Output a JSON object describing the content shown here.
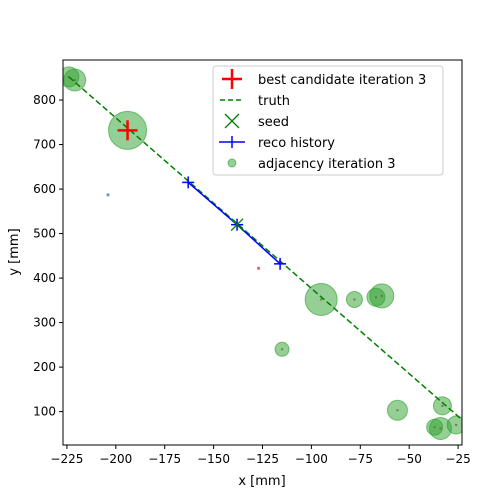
{
  "chart_data": {
    "type": "scatter",
    "xlabel": "x [mm]",
    "ylabel": "y [mm]",
    "xlim": [
      -227,
      -23
    ],
    "ylim": [
      25,
      890
    ],
    "x_ticks": [
      -225,
      -200,
      -175,
      -150,
      -125,
      -100,
      -75,
      -50,
      -25
    ],
    "y_ticks": [
      100,
      200,
      300,
      400,
      500,
      600,
      700,
      800
    ],
    "grid": false,
    "legend_position": "top-right",
    "legend": [
      {
        "label": "best candidate iteration 3",
        "marker": "plus",
        "color": "#ff0000"
      },
      {
        "label": "truth",
        "marker": "dashed-line",
        "color": "#008000"
      },
      {
        "label": "seed",
        "marker": "x",
        "color": "#008000"
      },
      {
        "label": "reco history",
        "marker": "line-plus",
        "color": "#0000ff"
      },
      {
        "label": "adjacency iteration 3",
        "marker": "circle",
        "color": "#2ca02c"
      }
    ],
    "truth_line": [
      [
        -224,
        852
      ],
      [
        -22,
        78
      ]
    ],
    "reco_history": [
      [
        -163,
        615
      ],
      [
        -138,
        520
      ],
      [
        -116,
        432
      ]
    ],
    "seed": [
      -138,
      520
    ],
    "best_candidate": [
      -194,
      732
    ],
    "adjacency_points": [
      {
        "x": -224,
        "y": 852,
        "size": 10
      },
      {
        "x": -221,
        "y": 845,
        "size": 11
      },
      {
        "x": -194,
        "y": 732,
        "size": 19
      },
      {
        "x": -95,
        "y": 352,
        "size": 16
      },
      {
        "x": -78,
        "y": 352,
        "size": 8
      },
      {
        "x": -67,
        "y": 357,
        "size": 9
      },
      {
        "x": -64,
        "y": 360,
        "size": 12
      },
      {
        "x": -115,
        "y": 240,
        "size": 7
      },
      {
        "x": -56,
        "y": 103,
        "size": 10
      },
      {
        "x": -33,
        "y": 113,
        "size": 9
      },
      {
        "x": -37,
        "y": 65,
        "size": 8
      },
      {
        "x": -34,
        "y": 62,
        "size": 11
      },
      {
        "x": -26,
        "y": 70,
        "size": 9
      }
    ],
    "other_points": [
      {
        "x": -204,
        "y": 587,
        "color": "#1f77b4"
      },
      {
        "x": -127,
        "y": 422,
        "color": "#d62728"
      }
    ],
    "colors": {
      "adjacency": "#2ca02c",
      "truth": "#008000",
      "reco": "#0000ff",
      "best": "#ff0000"
    }
  }
}
